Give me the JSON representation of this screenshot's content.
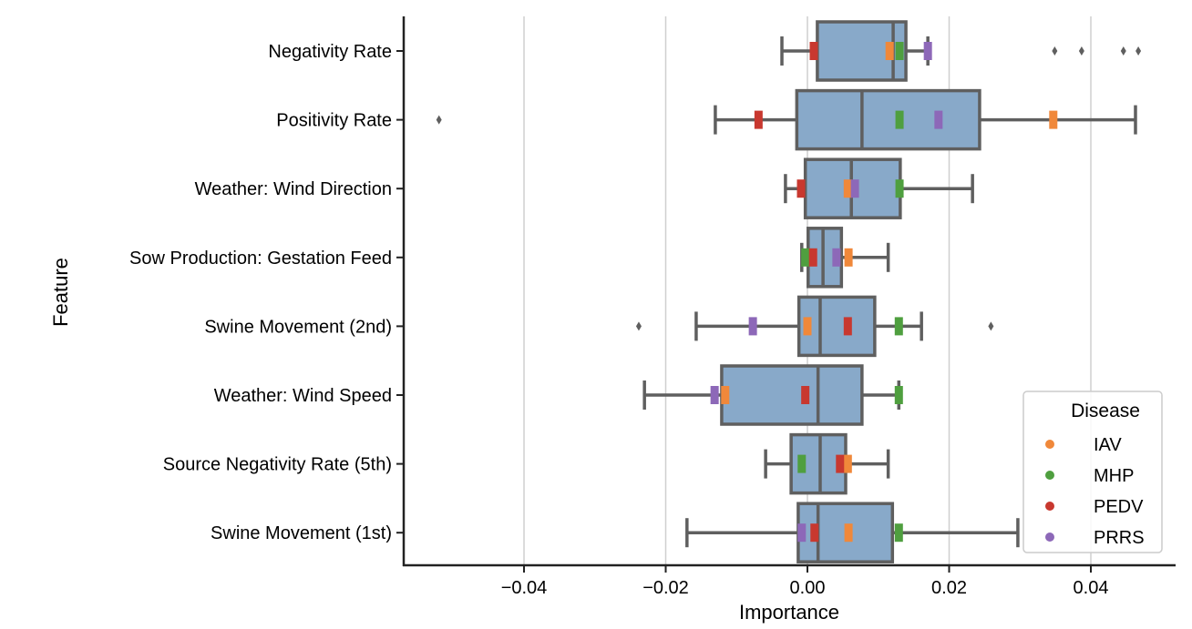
{
  "chart_data": {
    "type": "box",
    "orientation": "horizontal",
    "xlabel": "Importance",
    "ylabel": "Feature",
    "xlim": [
      -0.057,
      0.052
    ],
    "xticks": [
      -0.04,
      -0.02,
      0.0,
      0.02,
      0.04
    ],
    "xtick_labels": [
      "−0.04",
      "−0.02",
      "0.00",
      "0.02",
      "0.04"
    ],
    "grid": "vertical",
    "legend": {
      "title": "Disease",
      "placement": "bottom-right",
      "entries": [
        "IAV",
        "MHP",
        "PEDV",
        "PRRS"
      ]
    },
    "colors": {
      "box": "#88a9c9",
      "edge": "#5f5f5f",
      "grid": "#cfcfcf",
      "IAV": "#f0883a",
      "MHP": "#4f9f3f",
      "PEDV": "#c8382f",
      "PRRS": "#8d68b8"
    },
    "features": [
      {
        "name": "Negativity Rate",
        "whislo": -0.0036,
        "q1": 0.0014,
        "med": 0.0121,
        "q3": 0.0139,
        "whishi": 0.017,
        "fliers": [
          0.0349,
          0.0387,
          0.0446,
          0.0467
        ],
        "points": {
          "IAV": 0.0116,
          "MHP": 0.013,
          "PEDV": 0.0009,
          "PRRS": 0.017
        }
      },
      {
        "name": "Positivity Rate",
        "whislo": -0.013,
        "q1": -0.0015,
        "med": 0.0077,
        "q3": 0.0243,
        "whishi": 0.0463,
        "fliers": [
          -0.052
        ],
        "points": {
          "IAV": 0.0347,
          "MHP": 0.013,
          "PEDV": -0.0069,
          "PRRS": 0.0185
        }
      },
      {
        "name": "Weather: Wind Direction",
        "whislo": -0.0031,
        "q1": -0.0003,
        "med": 0.0062,
        "q3": 0.0131,
        "whishi": 0.0233,
        "fliers": [],
        "points": {
          "IAV": 0.0057,
          "MHP": 0.013,
          "PEDV": -0.0009,
          "PRRS": 0.0067
        }
      },
      {
        "name": "Sow Production: Gestation Feed",
        "whislo": -0.0008,
        "q1": 0.0001,
        "med": 0.0022,
        "q3": 0.0048,
        "whishi": 0.0114,
        "fliers": [],
        "points": {
          "IAV": 0.0058,
          "MHP": -0.0003,
          "PEDV": 0.0008,
          "PRRS": 0.0041
        }
      },
      {
        "name": "Swine Movement (2nd)",
        "whislo": -0.0157,
        "q1": -0.0012,
        "med": 0.0018,
        "q3": 0.0095,
        "whishi": 0.0161,
        "fliers": [
          -0.0238,
          0.0259
        ],
        "points": {
          "IAV": 0.0,
          "MHP": 0.0129,
          "PEDV": 0.0057,
          "PRRS": -0.0077
        }
      },
      {
        "name": "Weather: Wind Speed",
        "whislo": -0.023,
        "q1": -0.0121,
        "med": 0.0015,
        "q3": 0.0077,
        "whishi": 0.0129,
        "fliers": [],
        "points": {
          "IAV": -0.0116,
          "MHP": 0.0129,
          "PEDV": -0.0003,
          "PRRS": -0.0131
        }
      },
      {
        "name": "Source Negativity Rate (5th)",
        "whislo": -0.0059,
        "q1": -0.0023,
        "med": 0.0018,
        "q3": 0.0054,
        "whishi": 0.0114,
        "fliers": [],
        "points": {
          "IAV": 0.0057,
          "MHP": -0.0008,
          "PEDV": 0.0046
        }
      },
      {
        "name": "Swine Movement (1st)",
        "whislo": -0.017,
        "q1": -0.0013,
        "med": 0.0015,
        "q3": 0.012,
        "whishi": 0.0297,
        "fliers": [],
        "points": {
          "IAV": 0.0058,
          "MHP": 0.0129,
          "PEDV": 0.001,
          "PRRS": -0.0008
        }
      }
    ]
  }
}
